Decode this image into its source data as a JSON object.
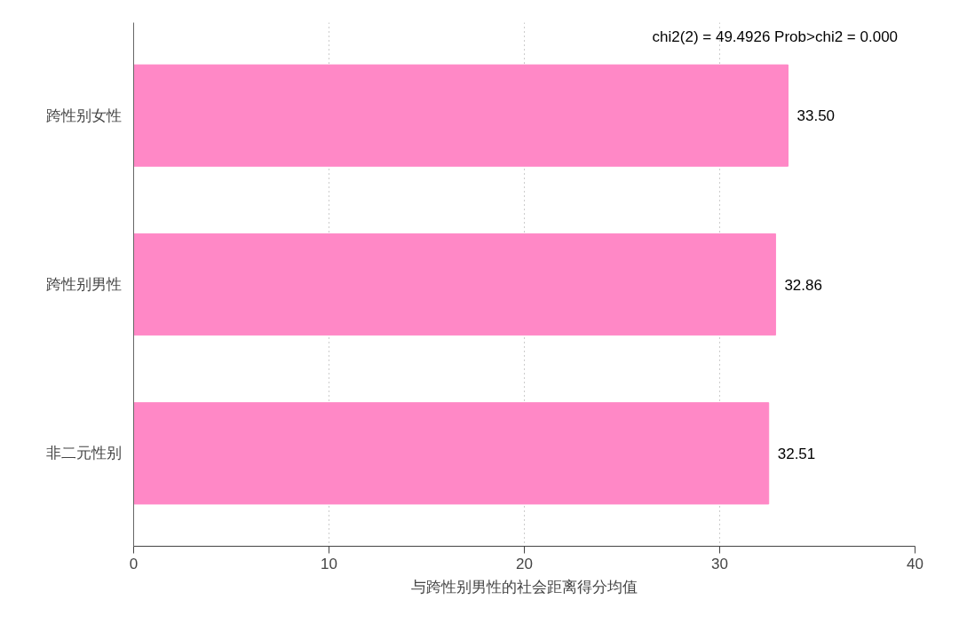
{
  "chart_data": {
    "type": "bar",
    "orientation": "horizontal",
    "categories": [
      "跨性别女性",
      "跨性别男性",
      "非二元性别"
    ],
    "values": [
      33.5,
      32.86,
      32.51
    ],
    "value_labels": [
      "33.50",
      "32.86",
      "32.51"
    ],
    "color": "#ff88c6",
    "xlim": [
      0,
      40
    ],
    "xticks": [
      0,
      10,
      20,
      30,
      40
    ],
    "xlabel": "与跨性别男性的社会距离得分均值",
    "annotations": [
      "chi2(2) =  49.4926  Prob>chi2 = 0.000"
    ],
    "grid": "x"
  }
}
